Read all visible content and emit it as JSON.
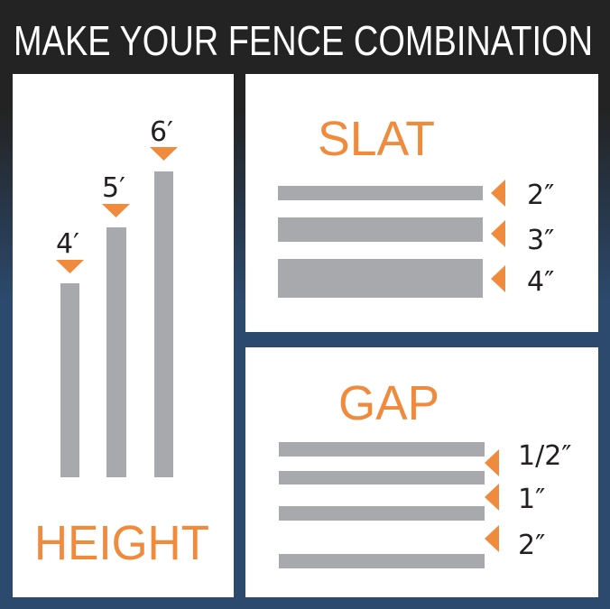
{
  "title": "MAKE YOUR FENCE COMBINATION",
  "colors": {
    "accent": "#f08a3c",
    "bar": "#a7a9ac",
    "panel": "#ffffff",
    "background_top": "#222222",
    "background_bottom": "#2c4a6e",
    "text": "#231f20"
  },
  "height": {
    "heading": "HEIGHT",
    "options": [
      {
        "label": "4′"
      },
      {
        "label": "5′"
      },
      {
        "label": "6′"
      }
    ]
  },
  "slat": {
    "heading": "SLAT",
    "options": [
      {
        "label": "2″"
      },
      {
        "label": "3″"
      },
      {
        "label": "4″"
      }
    ]
  },
  "gap": {
    "heading": "GAP",
    "options": [
      {
        "label": "1/2″"
      },
      {
        "label": "1″"
      },
      {
        "label": "2″"
      }
    ]
  }
}
